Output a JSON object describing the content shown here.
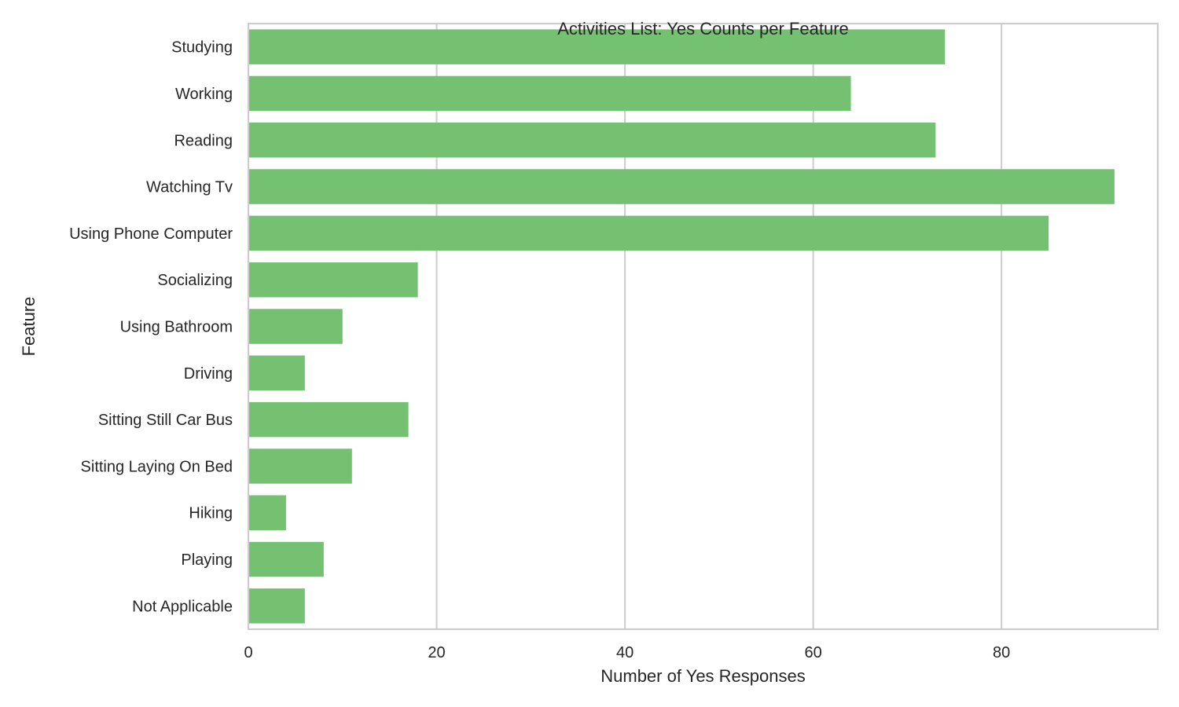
{
  "chart_data": {
    "type": "bar",
    "orientation": "horizontal",
    "title": "Activities List: Yes Counts per Feature",
    "xlabel": "Number of Yes Responses",
    "ylabel": "Feature",
    "xlim": [
      0,
      96.6
    ],
    "xticks": [
      0,
      20,
      40,
      60,
      80
    ],
    "grid": "vertical",
    "bar_color": "#75c172",
    "categories": [
      "Studying",
      "Working",
      "Reading",
      "Watching Tv",
      "Using Phone Computer",
      "Socializing",
      "Using Bathroom",
      "Driving",
      "Sitting Still Car Bus",
      "Sitting Laying On Bed",
      "Hiking",
      "Playing",
      "Not Applicable"
    ],
    "values": [
      74,
      64,
      73,
      92,
      85,
      18,
      10,
      6,
      17,
      11,
      4,
      8,
      6
    ]
  }
}
